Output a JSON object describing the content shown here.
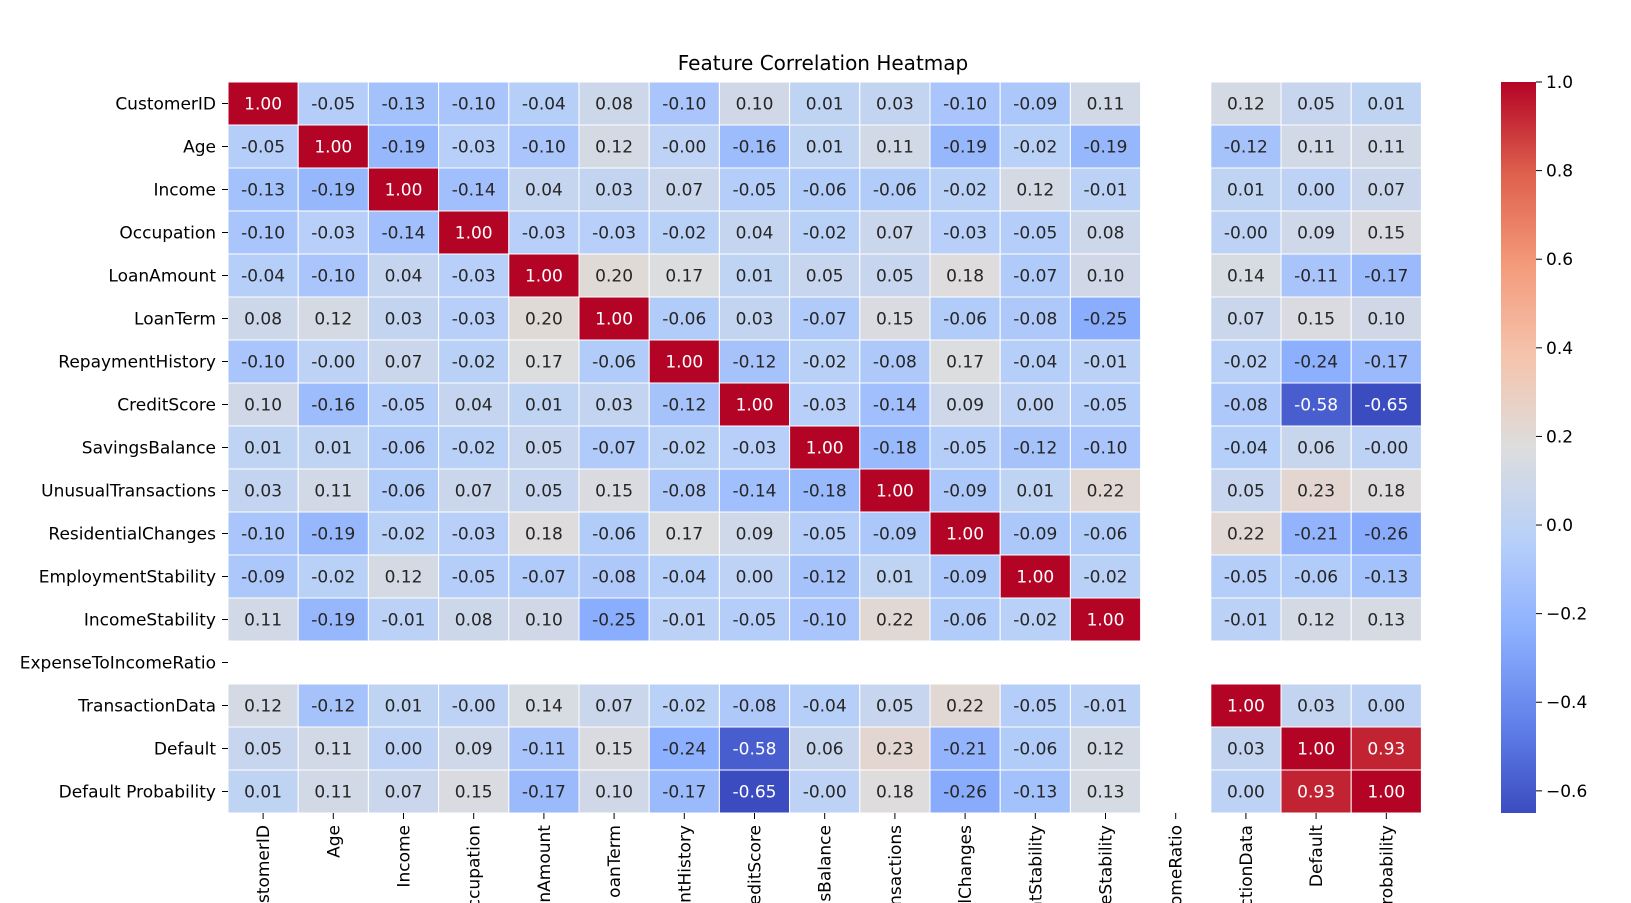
{
  "chart_data": {
    "type": "heatmap",
    "title": "Feature Correlation Heatmap",
    "rows": [
      "CustomerID",
      "Age",
      "Income",
      "Occupation",
      "LoanAmount",
      "LoanTerm",
      "RepaymentHistory",
      "CreditScore",
      "SavingsBalance",
      "UnusualTransactions",
      "ResidentialChanges",
      "EmploymentStability",
      "IncomeStability",
      "ExpenseToIncomeRatio",
      "TransactionData",
      "Default",
      "Default Probability"
    ],
    "columns": [
      "stomerID",
      "Age",
      "Income",
      "ccupation",
      "nAmount",
      "oanTerm",
      "ntHistory",
      "editScore",
      "sBalance",
      "nsactions",
      "lChanges",
      "ntStability",
      "eStability",
      "omeRatio",
      "ctionData",
      "Default",
      "robability"
    ],
    "values": [
      [
        1.0,
        -0.05,
        -0.13,
        -0.1,
        -0.04,
        0.08,
        -0.1,
        0.1,
        0.01,
        0.03,
        -0.1,
        -0.09,
        0.11,
        null,
        0.12,
        0.05,
        0.01
      ],
      [
        -0.05,
        1.0,
        -0.19,
        -0.03,
        -0.1,
        0.12,
        -0.0,
        -0.16,
        0.01,
        0.11,
        -0.19,
        -0.02,
        -0.19,
        null,
        -0.12,
        0.11,
        0.11
      ],
      [
        -0.13,
        -0.19,
        1.0,
        -0.14,
        0.04,
        0.03,
        0.07,
        -0.05,
        -0.06,
        -0.06,
        -0.02,
        0.12,
        -0.01,
        null,
        0.01,
        0.0,
        0.07
      ],
      [
        -0.1,
        -0.03,
        -0.14,
        1.0,
        -0.03,
        -0.03,
        -0.02,
        0.04,
        -0.02,
        0.07,
        -0.03,
        -0.05,
        0.08,
        null,
        -0.0,
        0.09,
        0.15
      ],
      [
        -0.04,
        -0.1,
        0.04,
        -0.03,
        1.0,
        0.2,
        0.17,
        0.01,
        0.05,
        0.05,
        0.18,
        -0.07,
        0.1,
        null,
        0.14,
        -0.11,
        -0.17
      ],
      [
        0.08,
        0.12,
        0.03,
        -0.03,
        0.2,
        1.0,
        -0.06,
        0.03,
        -0.07,
        0.15,
        -0.06,
        -0.08,
        -0.25,
        null,
        0.07,
        0.15,
        0.1
      ],
      [
        -0.1,
        -0.0,
        0.07,
        -0.02,
        0.17,
        -0.06,
        1.0,
        -0.12,
        -0.02,
        -0.08,
        0.17,
        -0.04,
        -0.01,
        null,
        -0.02,
        -0.24,
        -0.17
      ],
      [
        0.1,
        -0.16,
        -0.05,
        0.04,
        0.01,
        0.03,
        -0.12,
        1.0,
        -0.03,
        -0.14,
        0.09,
        0.0,
        -0.05,
        null,
        -0.08,
        -0.58,
        -0.65
      ],
      [
        0.01,
        0.01,
        -0.06,
        -0.02,
        0.05,
        -0.07,
        -0.02,
        -0.03,
        1.0,
        -0.18,
        -0.05,
        -0.12,
        -0.1,
        null,
        -0.04,
        0.06,
        -0.0
      ],
      [
        0.03,
        0.11,
        -0.06,
        0.07,
        0.05,
        0.15,
        -0.08,
        -0.14,
        -0.18,
        1.0,
        -0.09,
        0.01,
        0.22,
        null,
        0.05,
        0.23,
        0.18
      ],
      [
        -0.1,
        -0.19,
        -0.02,
        -0.03,
        0.18,
        -0.06,
        0.17,
        0.09,
        -0.05,
        -0.09,
        1.0,
        -0.09,
        -0.06,
        null,
        0.22,
        -0.21,
        -0.26
      ],
      [
        -0.09,
        -0.02,
        0.12,
        -0.05,
        -0.07,
        -0.08,
        -0.04,
        0.0,
        -0.12,
        0.01,
        -0.09,
        1.0,
        -0.02,
        null,
        -0.05,
        -0.06,
        -0.13
      ],
      [
        0.11,
        -0.19,
        -0.01,
        0.08,
        0.1,
        -0.25,
        -0.01,
        -0.05,
        -0.1,
        0.22,
        -0.06,
        -0.02,
        1.0,
        null,
        -0.01,
        0.12,
        0.13
      ],
      [
        null,
        null,
        null,
        null,
        null,
        null,
        null,
        null,
        null,
        null,
        null,
        null,
        null,
        null,
        null,
        null,
        null
      ],
      [
        0.12,
        -0.12,
        0.01,
        -0.0,
        0.14,
        0.07,
        -0.02,
        -0.08,
        -0.04,
        0.05,
        0.22,
        -0.05,
        -0.01,
        null,
        1.0,
        0.03,
        0.0
      ],
      [
        0.05,
        0.11,
        0.0,
        0.09,
        -0.11,
        0.15,
        -0.24,
        -0.58,
        0.06,
        0.23,
        -0.21,
        -0.06,
        0.12,
        null,
        0.03,
        1.0,
        0.93
      ],
      [
        0.01,
        0.11,
        0.07,
        0.15,
        -0.17,
        0.1,
        -0.17,
        -0.65,
        -0.0,
        0.18,
        -0.26,
        -0.13,
        0.13,
        null,
        0.0,
        0.93,
        1.0
      ]
    ],
    "colorbar": {
      "colormap": "coolwarm",
      "vmin": -0.65,
      "vmax": 1.0,
      "ticks": [
        "1.0",
        "0.8",
        "0.6",
        "0.4",
        "0.2",
        "0.0",
        "−0.2",
        "−0.4",
        "−0.6"
      ]
    },
    "annotation_format": "2 decimals",
    "cell_borders": "white"
  }
}
